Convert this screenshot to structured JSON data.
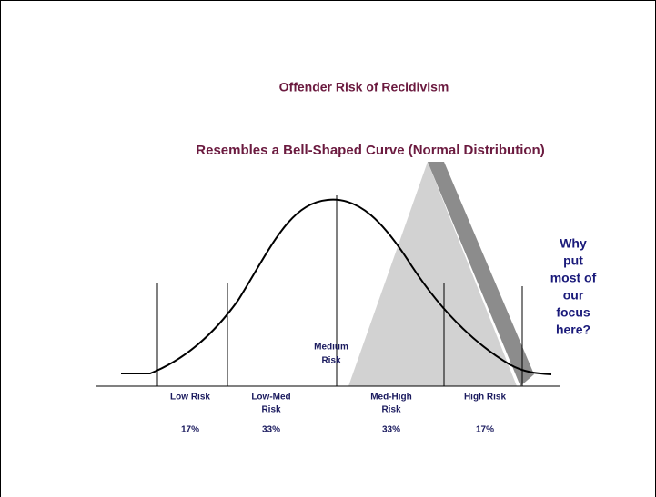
{
  "title": "Offender Risk of Recidivism",
  "subtitle": "Resembles a Bell-Shaped Curve (Normal Distribution)",
  "center_label": [
    "Medium",
    "Risk"
  ],
  "segments": [
    {
      "label": [
        "Low Risk"
      ],
      "percent": "17%"
    },
    {
      "label": [
        "Low-Med",
        "Risk"
      ],
      "percent": "33%"
    },
    {
      "label": [
        "Med-High",
        "Risk"
      ],
      "percent": "33%"
    },
    {
      "label": [
        "High Risk"
      ],
      "percent": "17%"
    }
  ],
  "callout": [
    "Why",
    "put",
    "most of",
    "our",
    "focus",
    "here?"
  ]
}
